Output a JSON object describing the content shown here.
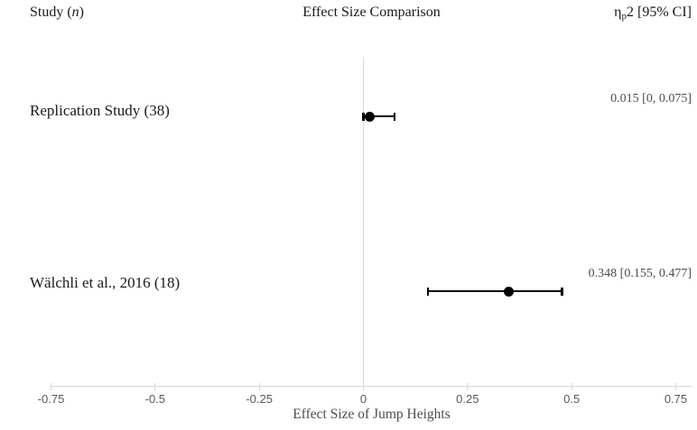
{
  "header": {
    "study_col": {
      "prefix": "Study (",
      "italic": "n",
      "suffix": ")"
    },
    "title": "Effect Size Comparison",
    "effect_col": {
      "eta": "η",
      "sub": "p",
      "rest": "2 [95% CI]"
    }
  },
  "axis": {
    "tick_labels": [
      "-0.75",
      "-0.5",
      "-0.25",
      "0",
      "0.25",
      "0.5",
      "0.75"
    ],
    "label": "Effect Size of Jump Heights"
  },
  "chart_data": {
    "type": "scatter",
    "subtype": "forest_plot",
    "title": "Effect Size Comparison",
    "xlabel": "Effect Size of Jump Heights",
    "ylabel": "",
    "xlim": [
      -0.75,
      0.75
    ],
    "xticks": [
      -0.75,
      -0.5,
      -0.25,
      0,
      0.25,
      0.5,
      0.75
    ],
    "reference_line_x": 0,
    "grid": false,
    "legend": false,
    "effect_measure": "partial eta squared (ηp2) with 95% CI",
    "studies": [
      {
        "label": "Replication Study (38)",
        "n": 38,
        "estimate": 0.015,
        "ci_lower": 0,
        "ci_upper": 0.075,
        "ci_text": "0.015 [0, 0.075]"
      },
      {
        "label": "Wälchli et al., 2016 (18)",
        "n": 18,
        "estimate": 0.348,
        "ci_lower": 0.155,
        "ci_upper": 0.477,
        "ci_text": "0.348 [0.155, 0.477]"
      }
    ]
  },
  "colors": {
    "text": "#1a1a1a",
    "muted_text": "#4d4d4d",
    "tick_text": "#595959",
    "line": "#d9d9d9",
    "marker": "#000000",
    "background": "#ffffff"
  }
}
